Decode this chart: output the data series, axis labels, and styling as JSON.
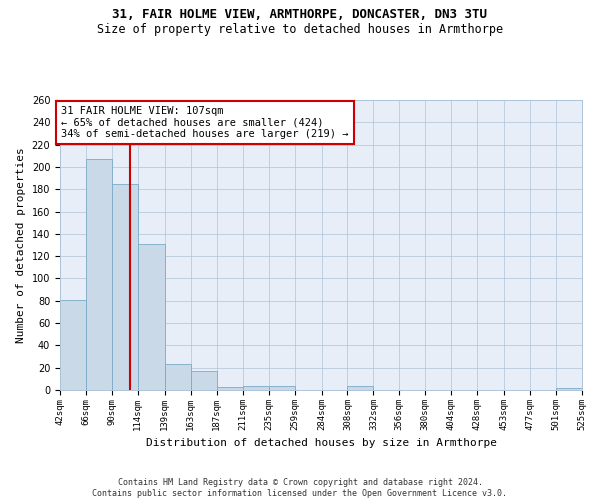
{
  "title1": "31, FAIR HOLME VIEW, ARMTHORPE, DONCASTER, DN3 3TU",
  "title2": "Size of property relative to detached houses in Armthorpe",
  "xlabel": "Distribution of detached houses by size in Armthorpe",
  "ylabel": "Number of detached properties",
  "bar_edges": [
    42,
    66,
    90,
    114,
    139,
    163,
    187,
    211,
    235,
    259,
    284,
    308,
    332,
    356,
    380,
    404,
    428,
    453,
    477,
    501,
    525
  ],
  "bar_heights": [
    81,
    207,
    185,
    131,
    23,
    17,
    3,
    4,
    4,
    0,
    0,
    4,
    0,
    0,
    0,
    0,
    0,
    0,
    0,
    2
  ],
  "bar_color": "#c9d9e8",
  "bar_edgecolor": "#7aaac8",
  "property_size": 107,
  "vline_color": "#cc0000",
  "annotation_text": "31 FAIR HOLME VIEW: 107sqm\n← 65% of detached houses are smaller (424)\n34% of semi-detached houses are larger (219) →",
  "annotation_box_color": "white",
  "annotation_box_edgecolor": "#cc0000",
  "tick_labels": [
    "42sqm",
    "66sqm",
    "90sqm",
    "114sqm",
    "139sqm",
    "163sqm",
    "187sqm",
    "211sqm",
    "235sqm",
    "259sqm",
    "284sqm",
    "308sqm",
    "332sqm",
    "356sqm",
    "380sqm",
    "404sqm",
    "428sqm",
    "453sqm",
    "477sqm",
    "501sqm",
    "525sqm"
  ],
  "ylim": [
    0,
    260
  ],
  "yticks": [
    0,
    20,
    40,
    60,
    80,
    100,
    120,
    140,
    160,
    180,
    200,
    220,
    240,
    260
  ],
  "footer": "Contains HM Land Registry data © Crown copyright and database right 2024.\nContains public sector information licensed under the Open Government Licence v3.0.",
  "bg_color": "#e8eef8",
  "grid_color": "#aec4d8",
  "title_fontsize": 9,
  "subtitle_fontsize": 8.5,
  "axis_label_fontsize": 8,
  "tick_fontsize": 6.5,
  "footer_fontsize": 6,
  "annotation_fontsize": 7.5
}
